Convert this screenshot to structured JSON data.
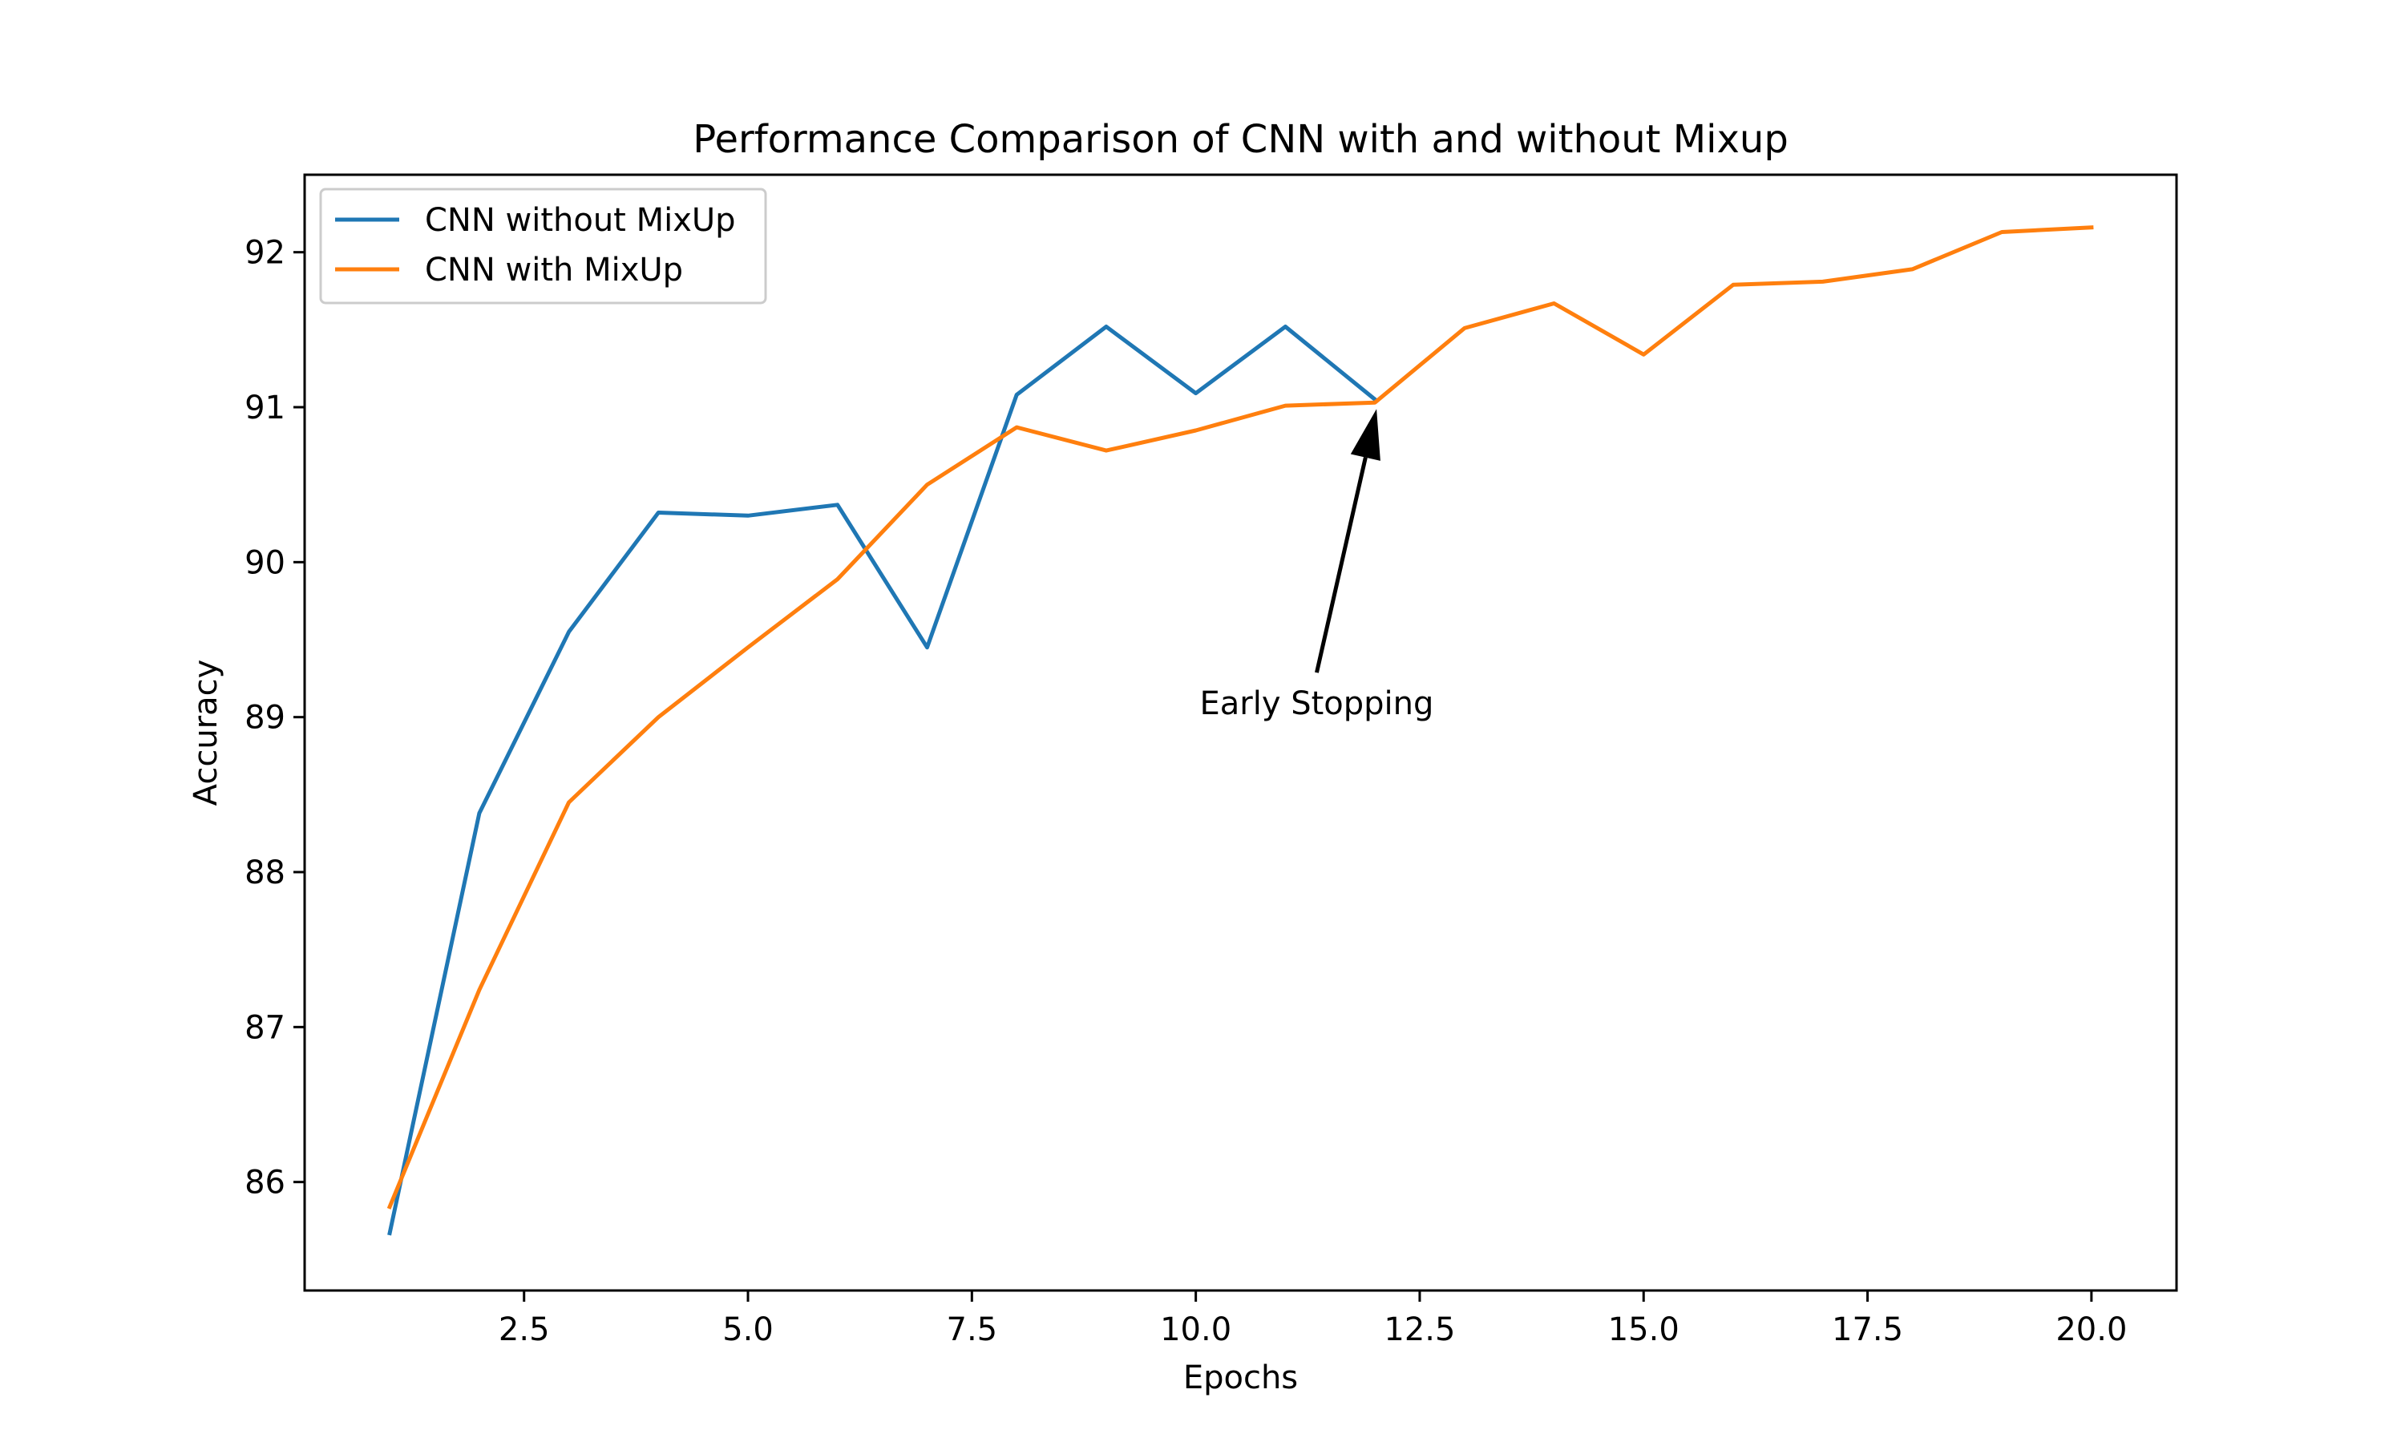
{
  "chart_data": {
    "type": "line",
    "title": "Performance Comparison of CNN with and without Mixup",
    "xlabel": "Epochs",
    "ylabel": "Accuracy",
    "xlim": [
      0.05,
      20.95
    ],
    "ylim": [
      85.3,
      92.5
    ],
    "xticks": [
      2.5,
      5.0,
      7.5,
      10.0,
      12.5,
      15.0,
      17.5,
      20.0
    ],
    "xtick_labels": [
      "2.5",
      "5.0",
      "7.5",
      "10.0",
      "12.5",
      "15.0",
      "17.5",
      "20.0"
    ],
    "yticks": [
      86,
      87,
      88,
      89,
      90,
      91,
      92
    ],
    "ytick_labels": [
      "86",
      "87",
      "88",
      "89",
      "90",
      "91",
      "92"
    ],
    "grid": false,
    "legend_position": "upper-left",
    "series": [
      {
        "name": "CNN without MixUp",
        "color": "#1f77b4",
        "x": [
          1,
          2,
          3,
          4,
          5,
          6,
          7,
          8,
          9,
          10,
          11,
          12
        ],
        "y": [
          85.67,
          88.38,
          89.55,
          90.32,
          90.3,
          90.37,
          89.45,
          91.08,
          91.52,
          91.09,
          91.52,
          91.05
        ]
      },
      {
        "name": "CNN with MixUp",
        "color": "#ff7f0e",
        "x": [
          1,
          2,
          3,
          4,
          5,
          6,
          7,
          8,
          9,
          10,
          11,
          12,
          13,
          14,
          15,
          16,
          17,
          18,
          19,
          20
        ],
        "y": [
          85.84,
          87.24,
          88.45,
          89.0,
          89.45,
          89.89,
          90.5,
          90.87,
          90.72,
          90.85,
          91.01,
          91.03,
          91.51,
          91.67,
          91.34,
          91.79,
          91.81,
          91.89,
          92.13,
          92.16
        ]
      }
    ],
    "annotations": [
      {
        "text": "Early Stopping",
        "xy": [
          12,
          91.03
        ],
        "xytext": [
          11.35,
          89.07
        ]
      }
    ]
  }
}
